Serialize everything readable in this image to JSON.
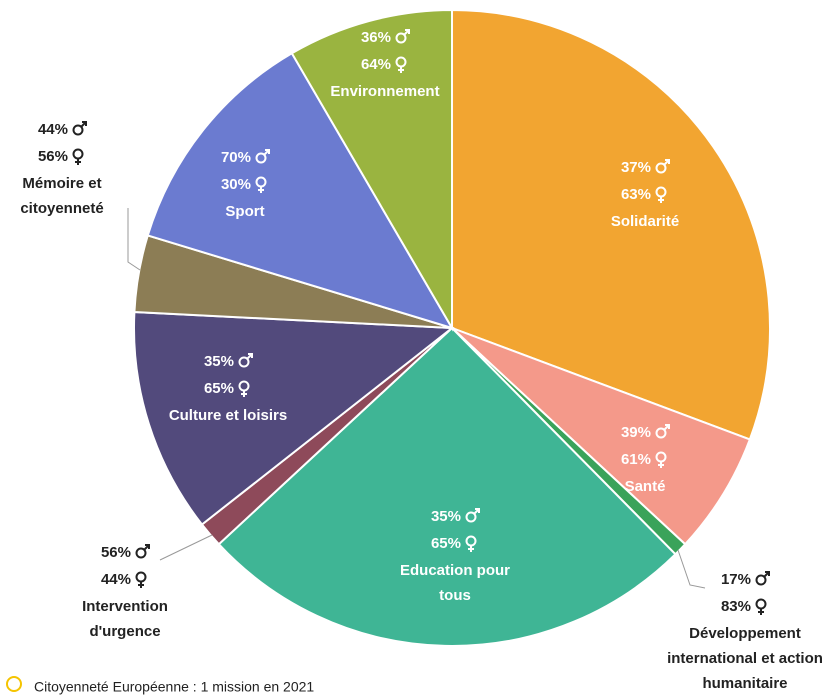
{
  "chart_data": {
    "type": "pie",
    "footer": "Citoyenneté Européenne : 1 mission en 2021",
    "slices": [
      {
        "name": [
          "Solidarité"
        ],
        "value": 30.7,
        "color": "#f2a531",
        "male": "37%",
        "female": "63%"
      },
      {
        "name": [
          "Santé"
        ],
        "value": 6.2,
        "color": "#f4998a",
        "male": "39%",
        "female": "61%"
      },
      {
        "name": [
          "Développement",
          "international et action",
          "humanitaire"
        ],
        "value": 0.7,
        "color": "#3aa35a",
        "male": "17%",
        "female": "83%"
      },
      {
        "name": [
          "Education pour",
          "tous"
        ],
        "value": 25.5,
        "color": "#3fb595",
        "male": "35%",
        "female": "65%"
      },
      {
        "name": [
          "Intervention",
          "d'urgence"
        ],
        "value": 1.3,
        "color": "#8e4a5a",
        "male": "56%",
        "female": "44%"
      },
      {
        "name": [
          "Culture et loisirs"
        ],
        "value": 11.4,
        "color": "#524a7c",
        "male": "35%",
        "female": "65%"
      },
      {
        "name": [
          "Mémoire et",
          "citoyenneté"
        ],
        "value": 3.9,
        "color": "#8c7d55",
        "male": "44%",
        "female": "56%"
      },
      {
        "name": [
          "Sport"
        ],
        "value": 11.9,
        "color": "#6b7bd0",
        "male": "70%",
        "female": "30%"
      },
      {
        "name": [
          "Environnement"
        ],
        "value": 8.4,
        "color": "#9ab440",
        "male": "36%",
        "female": "64%"
      }
    ]
  }
}
